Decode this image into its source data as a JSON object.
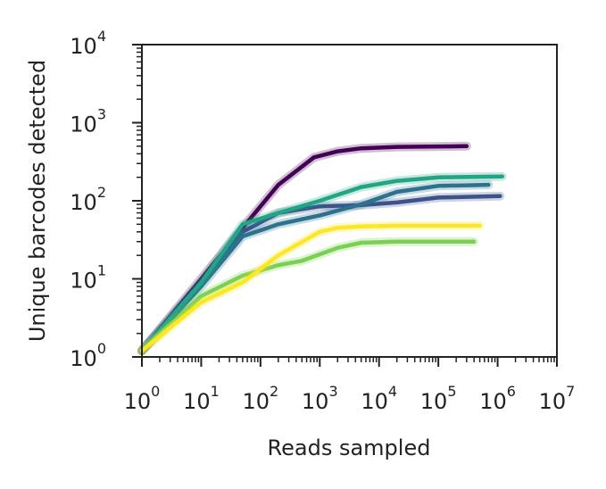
{
  "chart_data": {
    "type": "line",
    "xlabel": "Reads sampled",
    "ylabel": "Unique barcodes detected",
    "xscale": "log",
    "yscale": "log",
    "xlim": [
      1,
      10000000
    ],
    "ylim": [
      1,
      10000
    ],
    "x_tick_labels": [
      {
        "base": "10",
        "exp": "0",
        "value": 1
      },
      {
        "base": "10",
        "exp": "1",
        "value": 10
      },
      {
        "base": "10",
        "exp": "2",
        "value": 100
      },
      {
        "base": "10",
        "exp": "3",
        "value": 1000
      },
      {
        "base": "10",
        "exp": "4",
        "value": 10000
      },
      {
        "base": "10",
        "exp": "5",
        "value": 100000
      },
      {
        "base": "10",
        "exp": "6",
        "value": 1000000
      },
      {
        "base": "10",
        "exp": "7",
        "value": 10000000
      }
    ],
    "y_tick_labels": [
      {
        "base": "10",
        "exp": "0",
        "value": 1
      },
      {
        "base": "10",
        "exp": "1",
        "value": 10
      },
      {
        "base": "10",
        "exp": "2",
        "value": 100
      },
      {
        "base": "10",
        "exp": "3",
        "value": 1000
      },
      {
        "base": "10",
        "exp": "4",
        "value": 10000
      }
    ],
    "grid": false,
    "legend": "none",
    "series": [
      {
        "color": "#440154",
        "x": [
          1,
          10,
          50,
          200,
          800,
          2000,
          5000,
          20000,
          300000
        ],
        "y": [
          1.2,
          10,
          45,
          160,
          360,
          430,
          470,
          490,
          500
        ]
      },
      {
        "color": "#3b528b",
        "x": [
          1,
          10,
          50,
          200,
          1000,
          5000,
          20000,
          100000,
          1100000
        ],
        "y": [
          1.2,
          9,
          40,
          70,
          85,
          88,
          95,
          110,
          115
        ]
      },
      {
        "color": "#2c728e",
        "x": [
          1,
          10,
          50,
          200,
          1000,
          5000,
          20000,
          100000,
          700000
        ],
        "y": [
          1.2,
          8,
          35,
          50,
          65,
          90,
          130,
          155,
          160
        ]
      },
      {
        "color": "#21a685",
        "x": [
          1,
          10,
          50,
          200,
          1000,
          5000,
          20000,
          100000,
          1200000
        ],
        "y": [
          1.2,
          9,
          50,
          70,
          100,
          150,
          180,
          200,
          205
        ]
      },
      {
        "color": "#7ad151",
        "x": [
          1,
          10,
          50,
          200,
          500,
          2000,
          5000,
          20000,
          400000
        ],
        "y": [
          1.2,
          6,
          11,
          15,
          17,
          25,
          29,
          30,
          30
        ]
      },
      {
        "color": "#fde725",
        "x": [
          1,
          10,
          50,
          200,
          1000,
          2000,
          5000,
          20000,
          500000
        ],
        "y": [
          1.2,
          5,
          9,
          20,
          40,
          45,
          47,
          48,
          48
        ]
      }
    ]
  }
}
